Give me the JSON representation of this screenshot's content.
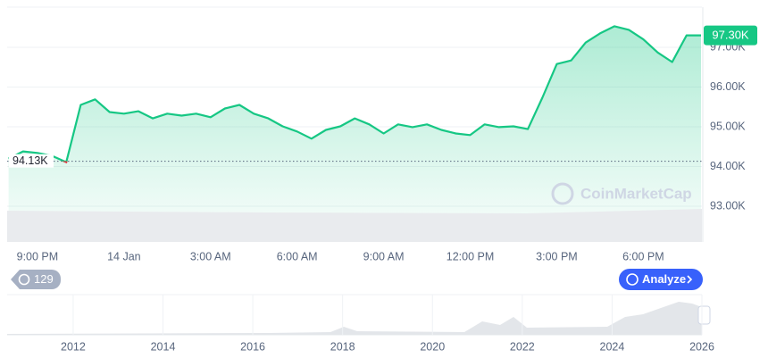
{
  "chart_data": [
    {
      "type": "area",
      "categories": [
        null,
        null,
        "9:00 PM",
        null,
        null,
        null,
        null,
        null,
        "14 Jan",
        null,
        null,
        null,
        null,
        null,
        "3:00 AM",
        null,
        null,
        null,
        null,
        null,
        "6:00 AM",
        null,
        null,
        null,
        null,
        null,
        "9:00 AM",
        null,
        null,
        null,
        null,
        null,
        "12:00 PM",
        null,
        null,
        null,
        null,
        null,
        "3:00 PM",
        null,
        null,
        null,
        null,
        null,
        "6:00 PM",
        null,
        null,
        null,
        null
      ],
      "values": [
        94.2,
        94.38,
        94.34,
        94.27,
        94.11,
        95.55,
        95.69,
        95.37,
        95.33,
        95.39,
        95.21,
        95.33,
        95.28,
        95.33,
        95.24,
        95.46,
        95.55,
        95.33,
        95.21,
        95.01,
        94.88,
        94.7,
        94.92,
        95.01,
        95.21,
        95.06,
        94.83,
        95.06,
        94.99,
        95.06,
        94.92,
        94.83,
        94.79,
        95.06,
        94.99,
        95.01,
        94.94,
        95.73,
        96.58,
        96.67,
        97.12,
        97.35,
        97.53,
        97.44,
        97.2,
        96.87,
        96.63,
        97.3,
        97.3
      ],
      "color": "#16c784",
      "below_color": "#ea3943",
      "ylim": [
        92.1,
        98
      ],
      "yticks": [
        {
          "value": 93,
          "label": "93.00K"
        },
        {
          "value": 94,
          "label": "94.00K"
        },
        {
          "value": 95,
          "label": "95.00K"
        },
        {
          "value": 96,
          "label": "96.00K"
        },
        {
          "value": 97,
          "label": "97.00K"
        }
      ],
      "grid": true,
      "baseline": {
        "value": 94.13,
        "label": "94.13K"
      },
      "last_price": {
        "value": 97.3,
        "label": "97.30K"
      }
    },
    {
      "type": "navigator",
      "xlim": [
        2010.53,
        2026
      ],
      "xticks": [
        2012,
        2014,
        2016,
        2018,
        2020,
        2022,
        2024,
        2026
      ]
    }
  ],
  "watermark": "CoinMarketCap",
  "history_badge": "129",
  "analyze_button": "Analyze"
}
